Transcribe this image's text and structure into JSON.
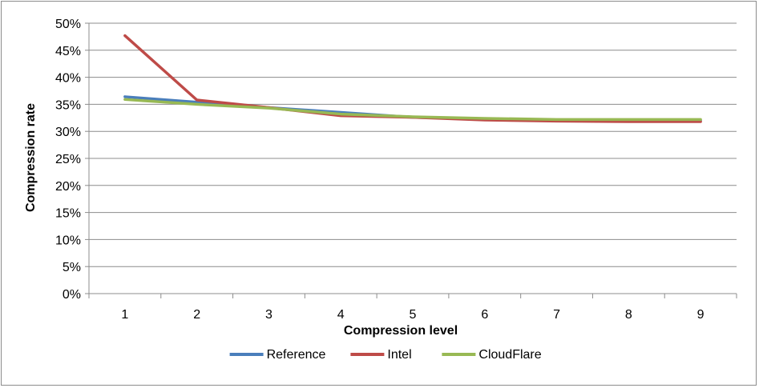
{
  "chart_data": {
    "type": "line",
    "title": "",
    "xlabel": "Compression level",
    "ylabel": "Compression rate",
    "categories": [
      "1",
      "2",
      "3",
      "4",
      "5",
      "6",
      "7",
      "8",
      "9"
    ],
    "yticks": [
      "0%",
      "5%",
      "10%",
      "15%",
      "20%",
      "25%",
      "30%",
      "35%",
      "40%",
      "45%",
      "50%"
    ],
    "ylim": [
      0,
      50
    ],
    "y_unit": "%",
    "grid": true,
    "legend_position": "bottom",
    "series": [
      {
        "name": "Reference",
        "color": "#4a7ebb",
        "values": [
          36.4,
          35.4,
          34.4,
          33.5,
          32.6,
          32.3,
          32.1,
          32.0,
          32.0
        ]
      },
      {
        "name": "Intel",
        "color": "#be4b48",
        "values": [
          47.7,
          35.8,
          34.4,
          32.9,
          32.6,
          32.1,
          31.9,
          31.8,
          31.8
        ]
      },
      {
        "name": "CloudFlare",
        "color": "#98b954",
        "values": [
          35.9,
          35.0,
          34.3,
          33.2,
          32.7,
          32.4,
          32.2,
          32.2,
          32.2
        ]
      }
    ]
  }
}
